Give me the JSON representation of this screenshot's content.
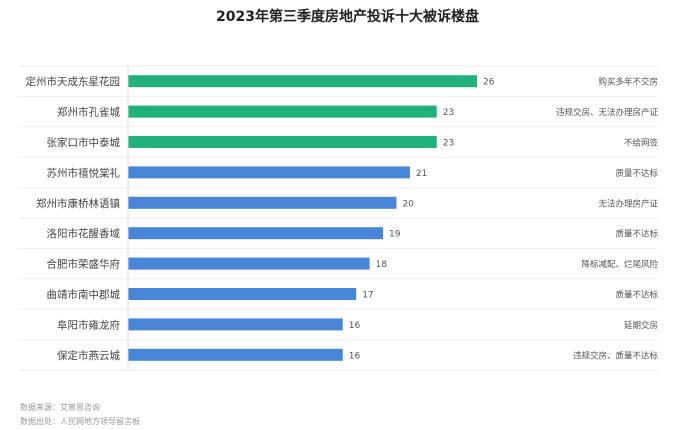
{
  "chart_data": {
    "type": "bar",
    "orientation": "horizontal",
    "title": "2023年第三季度房地产投诉十大被诉楼盘",
    "categories": [
      "定州市天成东星花园",
      "郑州市孔雀城",
      "张家口市中泰城",
      "苏州市禧悦棠礼",
      "郑州市康桥林语镇",
      "洛阳市花醒香域",
      "合肥市荣盛华府",
      "曲靖市南中郡城",
      "阜阳市雍龙府",
      "保定市燕云城"
    ],
    "values": [
      26,
      23,
      23,
      21,
      20,
      19,
      18,
      17,
      16,
      16
    ],
    "reasons": [
      "购买多年不交房",
      "违规交房、无法办理房产证",
      "不给网签",
      "质量不达标",
      "无法办理房产证",
      "质量不达标",
      "降标减配、烂尾风险",
      "质量不达标",
      "延期交房",
      "违规交房、质量不达标"
    ],
    "xlim": [
      0,
      26
    ],
    "grid": false,
    "legend": "none",
    "colors": {
      "highlight": "#22b07d",
      "default": "#4a86d8"
    }
  },
  "footer": {
    "source": "数据来源：艾普思咨询",
    "origin": "数据出处：人民网地方领导留言板"
  }
}
